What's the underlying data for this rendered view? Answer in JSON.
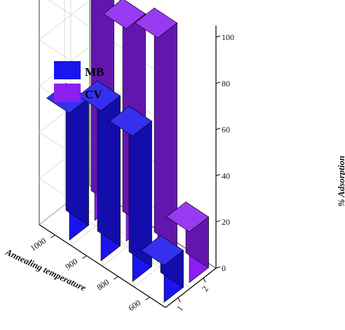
{
  "chart_data": {
    "type": "bar3d",
    "title": "",
    "xlabel": "",
    "ylabel": "Annealing temperature ",
    "zlabel": "% Adsorption",
    "x_ticks": [
      "1",
      "2"
    ],
    "y_ticks": [
      "1000",
      "900",
      "800",
      "600"
    ],
    "z_ticks": [
      "0",
      "20",
      "40",
      "60",
      "80",
      "100"
    ],
    "zlim": [
      0,
      100
    ],
    "grid": true,
    "legend_position": "top-left",
    "series": [
      {
        "name": "MB",
        "color": "#1a14ee",
        "x": "1",
        "values": [
          55,
          65,
          63,
          16
        ]
      },
      {
        "name": "CV",
        "color": "#8a1ff0",
        "x": "2",
        "values": [
          97,
          92,
          97,
          22
        ]
      }
    ]
  }
}
